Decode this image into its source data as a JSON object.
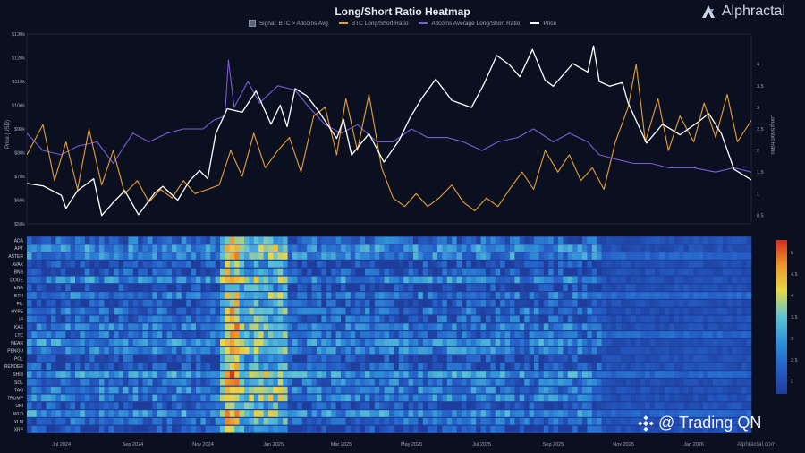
{
  "header": {
    "title": "Long/Short Ratio Heatmap",
    "brand": "Alphractal",
    "credit": "Alphractal.com",
    "watermark": "@ Trading QN"
  },
  "legend": [
    {
      "label": "Signal: BTC > Altcoins Avg",
      "color": "#5a6178",
      "kind": "box"
    },
    {
      "label": "BTC Long/Short Ratio",
      "color": "#e8a033",
      "kind": "line"
    },
    {
      "label": "Altcoins Average Long/Short Ratio",
      "color": "#7b5cd6",
      "kind": "line"
    },
    {
      "label": "Price",
      "color": "#ffffff",
      "kind": "line"
    }
  ],
  "chart_data": [
    {
      "type": "line",
      "title": "Long/Short Ratio Heatmap",
      "xlabel": "",
      "ylabel": "Price (USD)",
      "y2label": "Long/Short Ratio",
      "x_ticks": [
        "Jul 2024",
        "Sep 2024",
        "Nov 2024",
        "Jan 2025",
        "Mar 2025",
        "May 2025",
        "Jul 2025",
        "Sep 2025",
        "Nov 2025",
        "Jan 2026"
      ],
      "x_range": [
        "2024-06-01",
        "2026-02-20"
      ],
      "y_ticks": [
        "$50k",
        "$60k",
        "$70k",
        "$80k",
        "$90k",
        "$100k",
        "$110k",
        "$120k",
        "$130k"
      ],
      "ylim": [
        50000,
        130000
      ],
      "y2_ticks": [
        "0.5",
        "1",
        "1.5",
        "2",
        "2.5",
        "3",
        "3.5",
        "4"
      ],
      "y2lim": [
        0.3,
        4.7
      ],
      "grid": false,
      "series": [
        {
          "name": "Price",
          "color": "#ffffff",
          "axis": "left",
          "points": [
            [
              "2024-06-01",
              67000
            ],
            [
              "2024-06-15",
              66000
            ],
            [
              "2024-07-01",
              62000
            ],
            [
              "2024-07-05",
              56500
            ],
            [
              "2024-07-15",
              64000
            ],
            [
              "2024-07-29",
              69000
            ],
            [
              "2024-08-05",
              53500
            ],
            [
              "2024-08-15",
              59000
            ],
            [
              "2024-08-25",
              64000
            ],
            [
              "2024-09-06",
              53800
            ],
            [
              "2024-09-20",
              63000
            ],
            [
              "2024-09-27",
              65800
            ],
            [
              "2024-10-10",
              60000
            ],
            [
              "2024-10-20",
              68000
            ],
            [
              "2024-10-29",
              72500
            ],
            [
              "2024-11-05",
              69000
            ],
            [
              "2024-11-12",
              88000
            ],
            [
              "2024-11-22",
              98500
            ],
            [
              "2024-12-05",
              97000
            ],
            [
              "2024-12-17",
              106000
            ],
            [
              "2024-12-30",
              92000
            ],
            [
              "2025-01-07",
              100000
            ],
            [
              "2025-01-13",
              91000
            ],
            [
              "2025-01-20",
              107000
            ],
            [
              "2025-01-30",
              104000
            ],
            [
              "2025-02-10",
              97000
            ],
            [
              "2025-02-25",
              86000
            ],
            [
              "2025-03-03",
              94000
            ],
            [
              "2025-03-10",
              79000
            ],
            [
              "2025-03-25",
              88000
            ],
            [
              "2025-04-07",
              76000
            ],
            [
              "2025-04-20",
              85000
            ],
            [
              "2025-04-30",
              95000
            ],
            [
              "2025-05-10",
              103000
            ],
            [
              "2025-05-22",
              111000
            ],
            [
              "2025-06-05",
              102000
            ],
            [
              "2025-06-22",
              99000
            ],
            [
              "2025-07-03",
              109000
            ],
            [
              "2025-07-14",
              121000
            ],
            [
              "2025-07-25",
              117000
            ],
            [
              "2025-08-03",
              112000
            ],
            [
              "2025-08-14",
              123500
            ],
            [
              "2025-08-25",
              110500
            ],
            [
              "2025-09-01",
              108000
            ],
            [
              "2025-09-18",
              117500
            ],
            [
              "2025-10-01",
              114000
            ],
            [
              "2025-10-06",
              125000
            ],
            [
              "2025-10-11",
              110000
            ],
            [
              "2025-10-20",
              108000
            ],
            [
              "2025-10-31",
              109500
            ],
            [
              "2025-11-05",
              101000
            ],
            [
              "2025-11-21",
              84000
            ],
            [
              "2025-12-05",
              92000
            ],
            [
              "2025-12-20",
              87500
            ],
            [
              "2026-01-05",
              93000
            ],
            [
              "2026-01-14",
              96500
            ],
            [
              "2026-01-25",
              88000
            ],
            [
              "2026-02-05",
              73000
            ],
            [
              "2026-02-20",
              68500
            ]
          ]
        },
        {
          "name": "BTC Long/Short Ratio",
          "color": "#e8a033",
          "axis": "right",
          "points": [
            [
              "2024-06-01",
              1.9
            ],
            [
              "2024-06-15",
              2.6
            ],
            [
              "2024-06-25",
              1.3
            ],
            [
              "2024-07-05",
              2.2
            ],
            [
              "2024-07-15",
              1.1
            ],
            [
              "2024-07-25",
              2.5
            ],
            [
              "2024-08-05",
              1.2
            ],
            [
              "2024-08-15",
              2.0
            ],
            [
              "2024-08-25",
              1.0
            ],
            [
              "2024-09-05",
              1.3
            ],
            [
              "2024-09-15",
              0.8
            ],
            [
              "2024-09-25",
              1.1
            ],
            [
              "2024-10-05",
              0.9
            ],
            [
              "2024-10-15",
              1.3
            ],
            [
              "2024-10-25",
              1.0
            ],
            [
              "2024-11-05",
              1.1
            ],
            [
              "2024-11-15",
              1.2
            ],
            [
              "2024-11-25",
              2.0
            ],
            [
              "2024-12-05",
              1.4
            ],
            [
              "2024-12-15",
              2.4
            ],
            [
              "2024-12-25",
              1.6
            ],
            [
              "2025-01-05",
              2.0
            ],
            [
              "2025-01-15",
              2.3
            ],
            [
              "2025-01-25",
              1.5
            ],
            [
              "2025-02-05",
              2.8
            ],
            [
              "2025-02-15",
              3.0
            ],
            [
              "2025-02-25",
              1.9
            ],
            [
              "2025-03-05",
              3.2
            ],
            [
              "2025-03-15",
              2.0
            ],
            [
              "2025-03-25",
              3.3
            ],
            [
              "2025-04-05",
              1.6
            ],
            [
              "2025-04-15",
              0.9
            ],
            [
              "2025-04-25",
              0.7
            ],
            [
              "2025-05-05",
              1.0
            ],
            [
              "2025-05-15",
              0.7
            ],
            [
              "2025-05-25",
              0.9
            ],
            [
              "2025-06-05",
              1.2
            ],
            [
              "2025-06-15",
              0.8
            ],
            [
              "2025-06-25",
              0.6
            ],
            [
              "2025-07-05",
              0.9
            ],
            [
              "2025-07-15",
              0.7
            ],
            [
              "2025-07-25",
              1.1
            ],
            [
              "2025-08-05",
              1.5
            ],
            [
              "2025-08-15",
              1.1
            ],
            [
              "2025-08-25",
              2.0
            ],
            [
              "2025-09-05",
              1.5
            ],
            [
              "2025-09-15",
              1.9
            ],
            [
              "2025-09-25",
              1.3
            ],
            [
              "2025-10-05",
              1.6
            ],
            [
              "2025-10-15",
              1.1
            ],
            [
              "2025-10-25",
              2.2
            ],
            [
              "2025-11-05",
              3.0
            ],
            [
              "2025-11-12",
              4.0
            ],
            [
              "2025-11-20",
              2.2
            ],
            [
              "2025-12-01",
              3.2
            ],
            [
              "2025-12-10",
              2.0
            ],
            [
              "2025-12-20",
              2.8
            ],
            [
              "2026-01-01",
              2.2
            ],
            [
              "2026-01-10",
              3.1
            ],
            [
              "2026-01-20",
              2.3
            ],
            [
              "2026-01-30",
              3.3
            ],
            [
              "2026-02-08",
              2.2
            ],
            [
              "2026-02-20",
              2.7
            ]
          ]
        },
        {
          "name": "Altcoins Average Long/Short Ratio",
          "color": "#7b5cd6",
          "axis": "right",
          "points": [
            [
              "2024-06-01",
              2.4
            ],
            [
              "2024-06-15",
              2.0
            ],
            [
              "2024-07-01",
              1.9
            ],
            [
              "2024-07-15",
              2.1
            ],
            [
              "2024-08-01",
              2.2
            ],
            [
              "2024-08-15",
              1.7
            ],
            [
              "2024-09-01",
              2.4
            ],
            [
              "2024-09-15",
              2.2
            ],
            [
              "2024-10-01",
              2.4
            ],
            [
              "2024-10-15",
              2.5
            ],
            [
              "2024-11-01",
              2.5
            ],
            [
              "2024-11-10",
              2.7
            ],
            [
              "2024-11-20",
              2.8
            ],
            [
              "2024-11-23",
              4.1
            ],
            [
              "2024-11-28",
              3.0
            ],
            [
              "2024-12-10",
              3.6
            ],
            [
              "2024-12-20",
              3.1
            ],
            [
              "2025-01-05",
              3.5
            ],
            [
              "2025-01-20",
              3.4
            ],
            [
              "2025-02-01",
              3.0
            ],
            [
              "2025-02-15",
              2.6
            ],
            [
              "2025-03-01",
              2.4
            ],
            [
              "2025-03-15",
              2.6
            ],
            [
              "2025-04-01",
              2.2
            ],
            [
              "2025-04-15",
              2.2
            ],
            [
              "2025-05-01",
              2.5
            ],
            [
              "2025-05-15",
              2.3
            ],
            [
              "2025-06-01",
              2.3
            ],
            [
              "2025-06-15",
              2.2
            ],
            [
              "2025-07-01",
              2.0
            ],
            [
              "2025-07-15",
              2.2
            ],
            [
              "2025-08-01",
              2.3
            ],
            [
              "2025-08-15",
              2.5
            ],
            [
              "2025-09-01",
              2.2
            ],
            [
              "2025-09-15",
              2.4
            ],
            [
              "2025-10-01",
              2.2
            ],
            [
              "2025-10-11",
              1.9
            ],
            [
              "2025-10-25",
              1.8
            ],
            [
              "2025-11-10",
              1.7
            ],
            [
              "2025-11-25",
              1.7
            ],
            [
              "2025-12-10",
              1.6
            ],
            [
              "2026-01-01",
              1.6
            ],
            [
              "2026-01-20",
              1.5
            ],
            [
              "2026-02-05",
              1.6
            ],
            [
              "2026-02-20",
              1.5
            ]
          ]
        }
      ]
    },
    {
      "type": "heatmap",
      "title": "",
      "rows": [
        "ADA",
        "APT",
        "ASTER",
        "AVAX",
        "BNB",
        "DOGE",
        "ENA",
        "ETH",
        "FIL",
        "HYPE",
        "IP",
        "KAS",
        "LTC",
        "NEAR",
        "PENGU",
        "POL",
        "RENDER",
        "SHIB",
        "SOL",
        "TAO",
        "TRUMP",
        "UNI",
        "WLD",
        "XLM",
        "XRP"
      ],
      "x_ticks": [
        "Jul 2024",
        "Sep 2024",
        "Nov 2024",
        "Jan 2025",
        "Mar 2025",
        "May 2025",
        "Jul 2025",
        "Sep 2025",
        "Nov 2025",
        "Jan 2026"
      ],
      "colorbar_ticks": [
        "2",
        "2.5",
        "3",
        "3.5",
        "4",
        "4.5",
        "5"
      ],
      "colorbar_range": [
        1.7,
        5.3
      ],
      "colorscale": [
        "#1e3d9c",
        "#2560c8",
        "#2e8fd8",
        "#5cc4d4",
        "#e6d84a",
        "#f09a2a",
        "#d42c22"
      ]
    }
  ]
}
